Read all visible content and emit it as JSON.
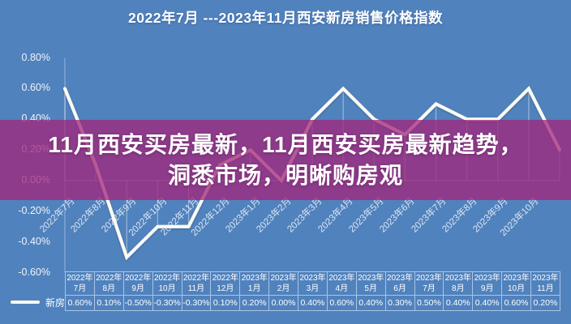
{
  "banner": {
    "line1": "11月西安买房最新，11月西安买房最新趋势，",
    "line2": "洞悉市场，明晰购房观"
  },
  "chart_data": {
    "type": "line",
    "title": "2022年7月 ---2023年11月西安新房销售价格指数",
    "categories": [
      "2022年7月",
      "2022年8月",
      "2022年9月",
      "2022年10月",
      "2022年11月",
      "2022年12月",
      "2023年1月",
      "2023年2月",
      "2023年3月",
      "2023年4月",
      "2023年5月",
      "2023年6月",
      "2023年7月",
      "2023年8月",
      "2023年9月",
      "2023年10月",
      "2023年11月"
    ],
    "series": [
      {
        "name": "新房",
        "values": [
          0.6,
          0.1,
          -0.5,
          -0.3,
          -0.3,
          0.1,
          0.2,
          0.0,
          0.4,
          0.6,
          0.4,
          0.3,
          0.5,
          0.4,
          0.4,
          0.6,
          0.2
        ],
        "value_labels": [
          "0.60%",
          "0.10%",
          "-0.50%",
          "-0.30%",
          "-0.30%",
          "0.10%",
          "0.20%",
          "0.00%",
          "0.40%",
          "0.60%",
          "0.40%",
          "0.30%",
          "0.50%",
          "0.40%",
          "0.40%",
          "0.60%",
          "0.20%"
        ]
      }
    ],
    "ylim": [
      -0.6,
      0.8
    ],
    "ytick_values": [
      0.8,
      0.6,
      0.4,
      0.2,
      0.0,
      -0.2,
      -0.4,
      -0.6
    ],
    "ytick_labels": [
      "0.80%",
      "0.60%",
      "0.40%",
      "0.20%",
      "0.00%",
      "-0.20%",
      "-0.40%",
      "-0.60%"
    ],
    "x_label_rotation_deg": 45,
    "x_labels_visible_count": 16,
    "grid": "drop-lines",
    "legend_position": "bottom-left",
    "data_table_shown": true
  },
  "colors": {
    "background": "#5082bd",
    "banner_overlay": "rgba(162,35,122,0.75)",
    "line": "#fbfaf2",
    "grid": "rgba(225,236,250,0.5)",
    "table_border": "rgba(186,208,236,0.85)",
    "text": "#ffffff"
  }
}
